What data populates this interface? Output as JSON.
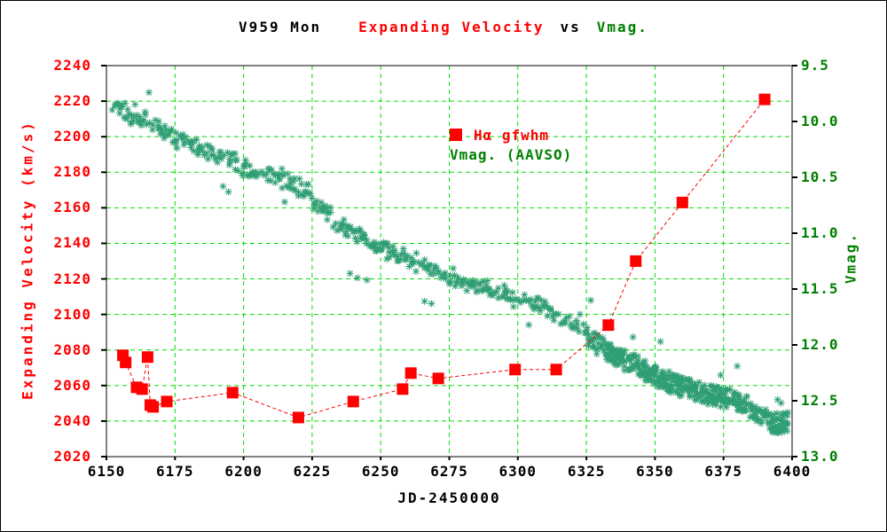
{
  "window": {
    "background": "#ffffff",
    "border_color": "#000000"
  },
  "title": {
    "object": "V959 Mon",
    "series1": "Expanding Velocity",
    "connector": "vs",
    "series2": "Vmag."
  },
  "legend": {
    "entries": [
      {
        "label": "Hα gfwhm",
        "color": "#ff0000",
        "marker": "red-square"
      },
      {
        "label": "Vmag. (AAVSO)",
        "color": "#008000",
        "marker": "none"
      }
    ]
  },
  "colors": {
    "red_series": "#ff0000",
    "green_scatter": "#2f9e74",
    "green_text": "#008000",
    "gridline": "#00dd00",
    "frame": "#000000",
    "black_text": "#000000"
  },
  "chart_data": {
    "type": "scatter",
    "title": "V959 Mon  Expanding Velocity vs Vmag.",
    "grid": "green dashed both directions",
    "x_axis": {
      "label": "JD-2450000",
      "min": 6150,
      "max": 6400,
      "ticks": [
        6150,
        6175,
        6200,
        6225,
        6250,
        6275,
        6300,
        6325,
        6350,
        6375,
        6400
      ],
      "tick_labels": [
        "6150",
        "6175",
        "6200",
        "6225",
        "6250",
        "6275",
        "6300",
        "6325",
        "6350",
        "6375",
        "6400"
      ]
    },
    "y_axis_left": {
      "label": "Expanding Velocity (km/s)",
      "min": 2020,
      "max": 2240,
      "ticks": [
        2020,
        2040,
        2060,
        2080,
        2100,
        2120,
        2140,
        2160,
        2180,
        2200,
        2220,
        2240
      ],
      "tick_labels": [
        "2020",
        "2040",
        "2060",
        "2080",
        "2100",
        "2120",
        "2140",
        "2160",
        "2180",
        "2200",
        "2220",
        "2240"
      ],
      "color": "#ff0000"
    },
    "y_axis_right": {
      "label": "Vmag.",
      "min": 9.5,
      "max": 13.0,
      "orientation": "9.5 at top, 13.0 at bottom",
      "ticks": [
        9.5,
        10.0,
        10.5,
        11.0,
        11.5,
        12.0,
        12.5,
        13.0
      ],
      "tick_labels": [
        "9.5",
        "10.0",
        "10.5",
        "11.0",
        "11.5",
        "12.0",
        "12.5",
        "13.0"
      ],
      "color": "#008000"
    },
    "series": [
      {
        "name": "Hα gfwhm",
        "axis": "left",
        "type": "scatter-line",
        "marker": "square",
        "marker_size": 13,
        "line_style": "dashed",
        "color": "#ff0000",
        "points": [
          [
            6156,
            2077
          ],
          [
            6157,
            2073
          ],
          [
            6161,
            2059
          ],
          [
            6163,
            2058
          ],
          [
            6165,
            2076
          ],
          [
            6166,
            2049
          ],
          [
            6167,
            2048
          ],
          [
            6172,
            2051
          ],
          [
            6196,
            2056
          ],
          [
            6220,
            2042
          ],
          [
            6240,
            2051
          ],
          [
            6258,
            2058
          ],
          [
            6261,
            2067
          ],
          [
            6271,
            2064
          ],
          [
            6299,
            2069
          ],
          [
            6314,
            2069
          ],
          [
            6333,
            2094
          ],
          [
            6343,
            2130
          ],
          [
            6360,
            2163
          ],
          [
            6390,
            2221
          ]
        ]
      },
      {
        "name": "Vmag. (AAVSO)",
        "axis": "right",
        "type": "scatter",
        "marker": "asterisk",
        "color": "#2f9e74",
        "trend_points": [
          [
            6152.5,
            9.84
          ],
          [
            6158,
            9.92
          ],
          [
            6163,
            9.97
          ],
          [
            6168,
            10.02
          ],
          [
            6173,
            10.1
          ],
          [
            6178,
            10.17
          ],
          [
            6183,
            10.22
          ],
          [
            6188,
            10.27
          ],
          [
            6193,
            10.33
          ],
          [
            6198,
            10.39
          ],
          [
            6203,
            10.43
          ],
          [
            6208,
            10.47
          ],
          [
            6213,
            10.5
          ],
          [
            6218,
            10.57
          ],
          [
            6223,
            10.65
          ],
          [
            6228,
            10.76
          ],
          [
            6233,
            10.87
          ],
          [
            6238,
            10.97
          ],
          [
            6243,
            11.02
          ],
          [
            6248,
            11.1
          ],
          [
            6253,
            11.16
          ],
          [
            6258,
            11.22
          ],
          [
            6263,
            11.27
          ],
          [
            6268,
            11.32
          ],
          [
            6273,
            11.37
          ],
          [
            6278,
            11.43
          ],
          [
            6283,
            11.47
          ],
          [
            6288,
            11.5
          ],
          [
            6293,
            11.53
          ],
          [
            6298,
            11.57
          ],
          [
            6303,
            11.62
          ],
          [
            6308,
            11.67
          ],
          [
            6313,
            11.72
          ],
          [
            6318,
            11.78
          ],
          [
            6323,
            11.84
          ],
          [
            6328,
            11.97
          ],
          [
            6333,
            12.07
          ],
          [
            6338,
            12.13
          ],
          [
            6343,
            12.18
          ],
          [
            6348,
            12.25
          ],
          [
            6353,
            12.31
          ],
          [
            6358,
            12.36
          ],
          [
            6363,
            12.4
          ],
          [
            6368,
            12.44
          ],
          [
            6373,
            12.46
          ],
          [
            6378,
            12.49
          ],
          [
            6383,
            12.54
          ],
          [
            6388,
            12.62
          ],
          [
            6393,
            12.71
          ],
          [
            6399,
            12.68
          ]
        ],
        "extra_points": [
          [
            6165.5,
            9.74
          ],
          [
            6192.5,
            10.58
          ],
          [
            6194.5,
            10.63
          ],
          [
            6215,
            10.72
          ],
          [
            6238.8,
            11.36
          ],
          [
            6241.5,
            11.4
          ],
          [
            6245,
            11.42
          ],
          [
            6266,
            11.61
          ],
          [
            6268.5,
            11.63
          ],
          [
            6304,
            11.82
          ],
          [
            6326.6,
            11.6
          ],
          [
            6342,
            11.93
          ],
          [
            6352,
            11.97
          ],
          [
            6374,
            12.27
          ],
          [
            6380,
            12.19
          ],
          [
            6394.7,
            12.49
          ],
          [
            6396,
            12.52
          ]
        ],
        "scatter_generation": {
          "seed": 7,
          "band": {
            "jd_start": 6152.5,
            "jd_end": 6326,
            "step": 0.9,
            "points_min": 1,
            "points_max": 3,
            "x_jitter": 0.45,
            "mag_sigma": 0.04
          },
          "clusters": {
            "jd_start": 6326,
            "jd_end": 6399.5,
            "step": 1.6,
            "points_min": 5,
            "points_max": 14,
            "x_jitter": 0.5,
            "mag_spread": 0.09
          }
        }
      }
    ]
  }
}
